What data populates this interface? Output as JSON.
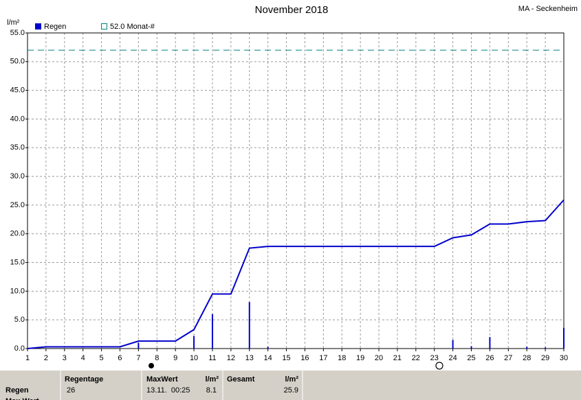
{
  "chart_data": {
    "type": "combo",
    "title": "November 2018",
    "subtitle": "MA - Seckenheim",
    "y_label": "l/m²",
    "xlim": [
      1,
      30
    ],
    "xticks": [
      1,
      2,
      3,
      4,
      5,
      6,
      7,
      8,
      9,
      10,
      11,
      12,
      13,
      14,
      15,
      16,
      17,
      18,
      19,
      20,
      21,
      22,
      23,
      24,
      25,
      26,
      27,
      28,
      29,
      30
    ],
    "ylim": [
      0,
      55
    ],
    "yticks": [
      {
        "value": 0,
        "label": "0.0"
      },
      {
        "value": 5,
        "label": "5.0"
      },
      {
        "value": 10,
        "label": "10.0"
      },
      {
        "value": 15,
        "label": "15.0"
      },
      {
        "value": 20,
        "label": "20.0"
      },
      {
        "value": 25,
        "label": "25.0"
      },
      {
        "value": 30,
        "label": "30.0"
      },
      {
        "value": 35,
        "label": "35.0"
      },
      {
        "value": 40,
        "label": "40.0"
      },
      {
        "value": 45,
        "label": "45.0"
      },
      {
        "value": 50,
        "label": "50.0"
      },
      {
        "value": 55,
        "label": "55.0"
      }
    ],
    "grid": true,
    "series": [
      {
        "name": "Regen",
        "type": "bar",
        "color": "#0000cc",
        "x": [
          7,
          10,
          11,
          13,
          14,
          24,
          25,
          26,
          28,
          29,
          30
        ],
        "values": [
          1.0,
          2.2,
          6.0,
          8.1,
          0.3,
          1.5,
          0.4,
          2.0,
          0.3,
          0.2,
          3.6
        ]
      },
      {
        "type": "line",
        "color": "#0000cc",
        "x": [
          1,
          2,
          6,
          7,
          9,
          10,
          11,
          12,
          13,
          14,
          23,
          24,
          25,
          26,
          27,
          28,
          29,
          30
        ],
        "values": [
          0,
          0.3,
          0.3,
          1.3,
          1.3,
          3.3,
          9.5,
          9.5,
          17.5,
          17.8,
          17.8,
          19.3,
          19.8,
          21.7,
          21.7,
          22.1,
          22.3,
          25.9
        ]
      }
    ],
    "reference_line": {
      "value": 52,
      "label": "52.0 Monat-#",
      "color": "#007f7f"
    }
  },
  "table": {
    "header": [
      "Regentage",
      "MaxWert",
      "l/m²",
      "Gesamt",
      "l/m²"
    ],
    "rows": [
      {
        "label": "Regen",
        "cells": [
          "26",
          "13.11.  00:25",
          "8.1",
          null,
          "25.9"
        ]
      },
      {
        "label": "Max Wert",
        "cells": []
      }
    ]
  }
}
